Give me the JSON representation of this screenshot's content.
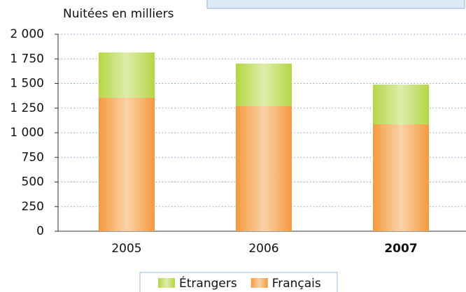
{
  "chart_data": {
    "type": "bar",
    "stacked": true,
    "y_label": "Nuitées en milliers",
    "categories": [
      "2005",
      "2006",
      "2007"
    ],
    "series": [
      {
        "name": "Français",
        "color": "#f39a3e",
        "values": [
          1355,
          1270,
          1085
        ]
      },
      {
        "name": "Étrangers",
        "color": "#b5d645",
        "values": [
          460,
          432,
          404
        ]
      }
    ],
    "ylim": [
      0,
      2000
    ],
    "yticks": [
      {
        "value": 0,
        "label": "0"
      },
      {
        "value": 250,
        "label": "250"
      },
      {
        "value": 500,
        "label": "500"
      },
      {
        "value": 750,
        "label": "750"
      },
      {
        "value": 1000,
        "label": "1 000"
      },
      {
        "value": 1250,
        "label": "1 250"
      },
      {
        "value": 1500,
        "label": "1 500"
      },
      {
        "value": 1750,
        "label": "1 750"
      },
      {
        "value": 2000,
        "label": "2 000"
      }
    ],
    "grid": true,
    "legend": "bottom"
  }
}
